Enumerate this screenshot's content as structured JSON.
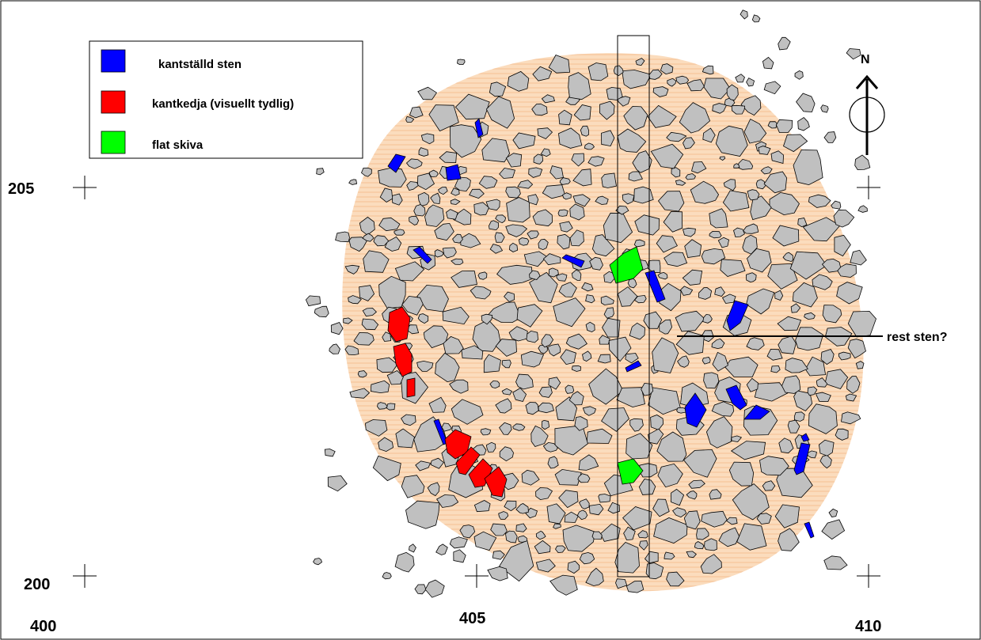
{
  "legend": {
    "items": [
      {
        "label": "kantställd sten",
        "color": "#0000ff"
      },
      {
        "label": "kantkedja (visuellt tydlig)",
        "color": "#ff0000"
      },
      {
        "label": "flat skiva",
        "color": "#00ff00"
      }
    ]
  },
  "north_label": "N",
  "annotation": "rest sten?",
  "coordinates": {
    "northing": [
      "205",
      "200"
    ],
    "easting": [
      "400",
      "405",
      "410"
    ]
  },
  "colors": {
    "stone_fill": "#c0c0c0",
    "stone_stroke": "#000000",
    "cairn_area": "#fbd9b6",
    "edge_stone": "#0000ff",
    "edge_chain": "#ff0000",
    "flat_slab": "#00ff00"
  },
  "icons": [
    "north-arrow-icon",
    "grid-cross-icon"
  ]
}
